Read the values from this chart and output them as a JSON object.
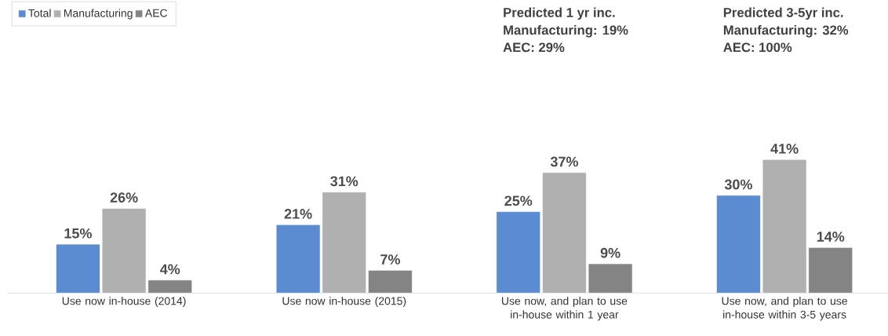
{
  "chart_data": {
    "type": "bar",
    "categories": [
      "Use now in-house (2014)",
      "Use now in-house (2015)",
      "Use now, and plan to use in-house within 1 year",
      "Use now, and plan to use in-house within 3-5 years"
    ],
    "series": [
      {
        "name": "Total",
        "color": "#5b8bd0",
        "values": [
          15,
          21,
          25,
          30
        ],
        "value_labels": [
          "15%",
          "21%",
          "25%",
          "30%"
        ]
      },
      {
        "name": "Manufacturing",
        "color": "#b0b0b0",
        "values": [
          26,
          31,
          37,
          41
        ],
        "value_labels": [
          "26%",
          "31%",
          "37%",
          "41%"
        ]
      },
      {
        "name": "AEC",
        "color": "#848484",
        "values": [
          4,
          7,
          9,
          14
        ],
        "value_labels": [
          "4%",
          "7%",
          "9%",
          "14%"
        ]
      }
    ],
    "legend": "top left",
    "annotations": [
      "Predicted 1 yr inc.",
      "Manufacturing: 19%",
      "AEC: 29%",
      "Predicted  3-5yr inc.",
      "Manufacturing: 32%",
      "AEC: 100%"
    ]
  }
}
